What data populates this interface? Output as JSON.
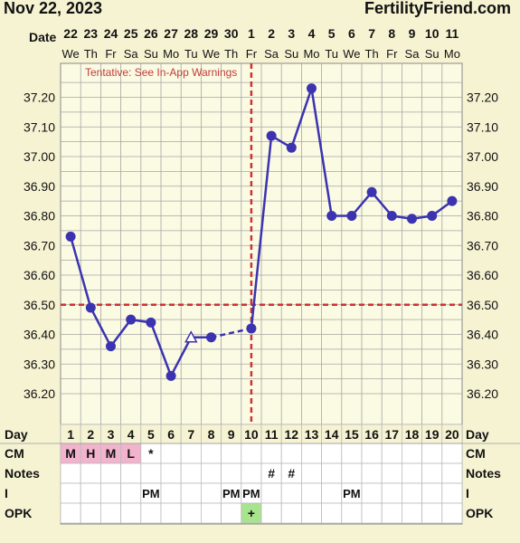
{
  "header": {
    "date": "Nov 22, 2023",
    "site": "FertilityFriend.com"
  },
  "colors": {
    "background": "#f6f3d3",
    "plot_background": "#fbfae3",
    "line": "#3b33b0",
    "coverline": "#cc3333",
    "cm_pink": "#f2b3cc",
    "opk_green": "#a8e38e",
    "grid": "#a6a6a6"
  },
  "chart_data": {
    "type": "line",
    "title": "",
    "xlabel": "Date",
    "ylabel": "",
    "ylim": [
      36.2,
      37.2
    ],
    "yticks": [
      "36.20",
      "36.30",
      "36.40",
      "36.50",
      "36.60",
      "36.70",
      "36.80",
      "36.90",
      "37.00",
      "37.10",
      "37.20"
    ],
    "dates": [
      "22",
      "23",
      "24",
      "25",
      "26",
      "27",
      "28",
      "29",
      "30",
      "1",
      "2",
      "3",
      "4",
      "5",
      "6",
      "7",
      "8",
      "9",
      "10",
      "11"
    ],
    "weekdays": [
      "We",
      "Th",
      "Fr",
      "Sa",
      "Su",
      "Mo",
      "Tu",
      "We",
      "Th",
      "Fr",
      "Sa",
      "Su",
      "Mo",
      "Tu",
      "We",
      "Th",
      "Fr",
      "Sa",
      "Su",
      "Mo"
    ],
    "cycle_days": [
      "1",
      "2",
      "3",
      "4",
      "5",
      "6",
      "7",
      "8",
      "9",
      "10",
      "11",
      "12",
      "13",
      "14",
      "15",
      "16",
      "17",
      "18",
      "19",
      "20"
    ],
    "temperatures": [
      36.73,
      36.49,
      36.36,
      36.45,
      36.44,
      36.26,
      36.39,
      36.39,
      null,
      36.42,
      37.07,
      37.03,
      37.23,
      36.8,
      36.8,
      36.88,
      36.8,
      36.79,
      36.8,
      36.85
    ],
    "open_marker_days": [
      "7"
    ],
    "dashed_segments": [
      [
        "8",
        "10"
      ]
    ],
    "coverline": 36.5,
    "ovulation_day": "10",
    "annotation": "Tentative: See In-App Warnings",
    "rows": {
      "day_label": "Day",
      "cm_label": "CM",
      "notes_label": "Notes",
      "i_label": "I",
      "opk_label": "OPK",
      "cm": [
        "M",
        "H",
        "M",
        "L",
        "*",
        "",
        "",
        "",
        "",
        "",
        "",
        "",
        "",
        "",
        "",
        "",
        "",
        "",
        "",
        ""
      ],
      "notes": [
        "",
        "",
        "",
        "",
        "",
        "",
        "",
        "",
        "",
        "",
        "#",
        "#",
        "",
        "",
        "",
        "",
        "",
        "",
        "",
        ""
      ],
      "i": [
        "",
        "",
        "",
        "",
        "PM",
        "",
        "",
        "",
        "PM",
        "PM",
        "",
        "",
        "",
        "",
        "PM",
        "",
        "",
        "",
        "",
        ""
      ],
      "opk": [
        "",
        "",
        "",
        "",
        "",
        "",
        "",
        "",
        "",
        "+",
        "",
        "",
        "",
        "",
        "",
        "",
        "",
        "",
        "",
        ""
      ]
    }
  }
}
